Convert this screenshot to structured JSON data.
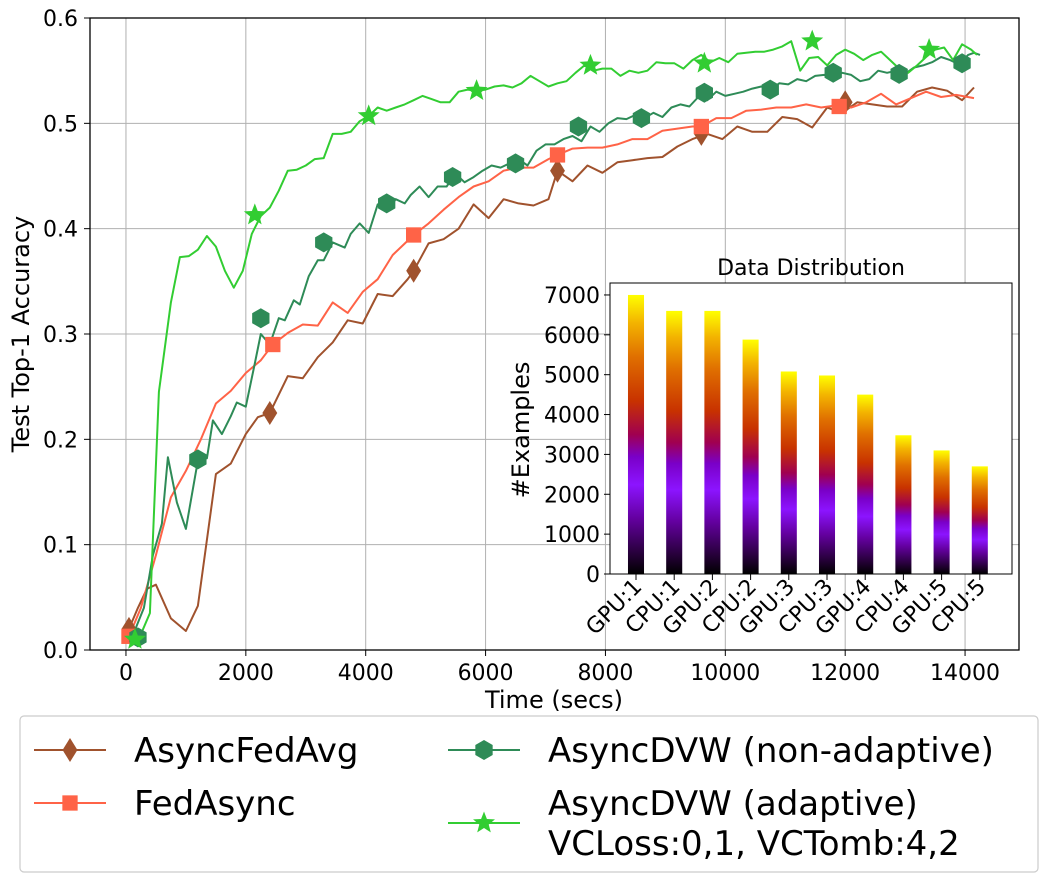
{
  "chart_data": [
    {
      "type": "line",
      "title": "",
      "xlabel": "Time (secs)",
      "ylabel": "Test Top-1 Accuracy",
      "xlim": [
        -600,
        14900
      ],
      "ylim": [
        0,
        0.6
      ],
      "xticks": [
        0,
        2000,
        4000,
        6000,
        8000,
        10000,
        12000,
        14000
      ],
      "xtick_labels": [
        "0",
        "2000",
        "4000",
        "6000",
        "8000",
        "10000",
        "12000",
        "14000"
      ],
      "yticks": [
        0,
        0.1,
        0.2,
        0.3,
        0.4,
        0.5,
        0.6
      ],
      "ytick_labels": [
        "0.0",
        "0.1",
        "0.2",
        "0.3",
        "0.4",
        "0.5",
        "0.6"
      ],
      "grid": true,
      "legend_position": "below",
      "series": [
        {
          "name": "AsyncFedAvg",
          "color": "#a0522d",
          "marker": "diamond",
          "x": [
            50,
            200,
            350,
            500,
            750,
            1000,
            1200,
            1500,
            1750,
            2000,
            2200,
            2400,
            2700,
            2950,
            3200,
            3450,
            3700,
            3950,
            4200,
            4450,
            4700,
            4800,
            5050,
            5300,
            5550,
            5800,
            6050,
            6300,
            6550,
            6800,
            7050,
            7200,
            7450,
            7700,
            7950,
            8200,
            8450,
            8700,
            8950,
            9200,
            9450,
            9700,
            9950,
            10200,
            10450,
            10700,
            10950,
            11200,
            11450,
            11700,
            11950,
            12200,
            12450,
            12700,
            12950,
            13200,
            13450,
            13700,
            13950,
            14150
          ],
          "y": [
            0.02,
            0.04,
            0.058,
            0.062,
            0.03,
            0.018,
            0.042,
            0.167,
            0.177,
            0.205,
            0.221,
            0.225,
            0.26,
            0.258,
            0.278,
            0.292,
            0.313,
            0.31,
            0.338,
            0.336,
            0.352,
            0.36,
            0.386,
            0.39,
            0.4,
            0.423,
            0.41,
            0.428,
            0.424,
            0.422,
            0.428,
            0.455,
            0.445,
            0.46,
            0.453,
            0.463,
            0.465,
            0.467,
            0.468,
            0.478,
            0.485,
            0.49,
            0.485,
            0.497,
            0.492,
            0.492,
            0.506,
            0.504,
            0.496,
            0.515,
            0.51,
            0.52,
            0.518,
            0.516,
            0.516,
            0.53,
            0.534,
            0.531,
            0.522,
            0.534
          ],
          "marker_x": [
            50,
            2400,
            4800,
            7200,
            9600,
            12000
          ],
          "marker_y": [
            0.02,
            0.225,
            0.36,
            0.455,
            0.49,
            0.52
          ]
        },
        {
          "name": "FedAsync",
          "color": "#ff6347",
          "marker": "square",
          "x": [
            50,
            250,
            500,
            750,
            1000,
            1250,
            1500,
            1750,
            2000,
            2250,
            2450,
            2700,
            2950,
            3200,
            3450,
            3700,
            3950,
            4200,
            4450,
            4800,
            5050,
            5300,
            5550,
            5800,
            6050,
            6300,
            6550,
            6800,
            7050,
            7200,
            7450,
            7700,
            7950,
            8200,
            8450,
            8700,
            8950,
            9200,
            9450,
            9600,
            9850,
            10100,
            10350,
            10600,
            10850,
            11100,
            11350,
            11600,
            11850,
            12100,
            12350,
            12600,
            12850,
            13100,
            13350,
            13600,
            13850,
            14150
          ],
          "y": [
            0.013,
            0.04,
            0.09,
            0.145,
            0.17,
            0.2,
            0.234,
            0.246,
            0.263,
            0.275,
            0.29,
            0.301,
            0.309,
            0.308,
            0.33,
            0.32,
            0.34,
            0.352,
            0.375,
            0.394,
            0.405,
            0.418,
            0.43,
            0.44,
            0.445,
            0.455,
            0.458,
            0.458,
            0.466,
            0.47,
            0.476,
            0.477,
            0.477,
            0.48,
            0.485,
            0.485,
            0.493,
            0.495,
            0.497,
            0.497,
            0.505,
            0.505,
            0.512,
            0.513,
            0.515,
            0.515,
            0.518,
            0.515,
            0.517,
            0.515,
            0.52,
            0.528,
            0.518,
            0.524,
            0.53,
            0.525,
            0.527,
            0.524
          ],
          "marker_x": [
            50,
            2450,
            4800,
            7200,
            9600,
            11900
          ],
          "marker_y": [
            0.013,
            0.29,
            0.394,
            0.47,
            0.497,
            0.516
          ]
        },
        {
          "name": "AsyncDVW (non-adaptive)",
          "color": "#2e8b57",
          "marker": "hexagon",
          "x": [
            100,
            300,
            450,
            600,
            700,
            850,
            1000,
            1200,
            1350,
            1450,
            1600,
            1750,
            1850,
            2000,
            2150,
            2250,
            2400,
            2550,
            2650,
            2800,
            2900,
            3050,
            3200,
            3300,
            3450,
            3650,
            3750,
            3900,
            4050,
            4200,
            4350,
            4500,
            4650,
            4750,
            4900,
            5050,
            5200,
            5350,
            5500,
            5650,
            5800,
            5950,
            6100,
            6250,
            6400,
            6550,
            6700,
            6850,
            7000,
            7150,
            7300,
            7450,
            7600,
            7750,
            7900,
            8050,
            8200,
            8350,
            8500,
            8650,
            8800,
            8950,
            9100,
            9250,
            9400,
            9550,
            9700,
            9850,
            10000,
            10150,
            10300,
            10450,
            10600,
            10750,
            10900,
            11050,
            11200,
            11350,
            11500,
            11650,
            11800,
            11950,
            12100,
            12250,
            12400,
            12550,
            12700,
            12850,
            13000,
            13150,
            13300,
            13450,
            13600,
            13750,
            13900,
            14050,
            14150,
            14250
          ],
          "y": [
            0.012,
            0.04,
            0.09,
            0.12,
            0.183,
            0.14,
            0.115,
            0.18,
            0.182,
            0.218,
            0.205,
            0.222,
            0.235,
            0.231,
            0.272,
            0.3,
            0.29,
            0.315,
            0.313,
            0.332,
            0.328,
            0.355,
            0.37,
            0.37,
            0.387,
            0.382,
            0.395,
            0.405,
            0.396,
            0.423,
            0.416,
            0.428,
            0.424,
            0.432,
            0.44,
            0.43,
            0.44,
            0.44,
            0.452,
            0.444,
            0.449,
            0.455,
            0.46,
            0.458,
            0.462,
            0.466,
            0.46,
            0.474,
            0.48,
            0.48,
            0.485,
            0.488,
            0.483,
            0.497,
            0.492,
            0.5,
            0.505,
            0.504,
            0.508,
            0.505,
            0.51,
            0.506,
            0.515,
            0.518,
            0.516,
            0.525,
            0.522,
            0.53,
            0.526,
            0.528,
            0.53,
            0.533,
            0.535,
            0.532,
            0.538,
            0.537,
            0.542,
            0.54,
            0.545,
            0.546,
            0.544,
            0.548,
            0.546,
            0.54,
            0.542,
            0.55,
            0.548,
            0.55,
            0.547,
            0.553,
            0.555,
            0.558,
            0.563,
            0.56,
            0.556,
            0.565,
            0.567,
            0.565
          ],
          "marker_x": [
            200,
            1200,
            2250,
            3300,
            4350,
            5450,
            6500,
            7550,
            8600,
            9650,
            10750,
            11800,
            12900,
            13950
          ],
          "marker_y": [
            0.012,
            0.181,
            0.315,
            0.387,
            0.424,
            0.449,
            0.462,
            0.497,
            0.505,
            0.529,
            0.532,
            0.548,
            0.547,
            0.557
          ]
        },
        {
          "name": "AsyncDVW (adaptive)\nVCLoss:0,1, VCTomb:4,2",
          "color": "#32cd32",
          "marker": "star",
          "x": [
            150,
            250,
            400,
            550,
            750,
            900,
            1050,
            1200,
            1350,
            1500,
            1650,
            1800,
            1950,
            2100,
            2250,
            2400,
            2550,
            2700,
            2850,
            3000,
            3150,
            3300,
            3450,
            3600,
            3750,
            3900,
            4050,
            4200,
            4350,
            4500,
            4650,
            4800,
            4950,
            5100,
            5250,
            5400,
            5550,
            5700,
            5850,
            6000,
            6150,
            6300,
            6450,
            6600,
            6750,
            6900,
            7050,
            7200,
            7350,
            7500,
            7650,
            7800,
            7950,
            8100,
            8250,
            8400,
            8550,
            8700,
            8850,
            9000,
            9150,
            9300,
            9450,
            9600,
            9750,
            9900,
            10050,
            10200,
            10350,
            10500,
            10650,
            10800,
            10950,
            11100,
            11250,
            11400,
            11550,
            11700,
            11850,
            12000,
            12150,
            12300,
            12450,
            12600,
            12750,
            12900,
            13050,
            13200,
            13350,
            13500,
            13650,
            13800,
            13950,
            14100,
            14200
          ],
          "y": [
            0.01,
            0.015,
            0.035,
            0.245,
            0.33,
            0.373,
            0.374,
            0.38,
            0.393,
            0.383,
            0.36,
            0.344,
            0.36,
            0.395,
            0.412,
            0.42,
            0.436,
            0.455,
            0.456,
            0.46,
            0.466,
            0.467,
            0.49,
            0.49,
            0.492,
            0.502,
            0.507,
            0.515,
            0.512,
            0.515,
            0.518,
            0.522,
            0.526,
            0.523,
            0.52,
            0.52,
            0.53,
            0.532,
            0.531,
            0.532,
            0.535,
            0.536,
            0.534,
            0.538,
            0.545,
            0.54,
            0.535,
            0.538,
            0.54,
            0.548,
            0.555,
            0.55,
            0.552,
            0.552,
            0.545,
            0.55,
            0.548,
            0.55,
            0.558,
            0.557,
            0.557,
            0.552,
            0.56,
            0.565,
            0.558,
            0.562,
            0.558,
            0.566,
            0.567,
            0.568,
            0.568,
            0.57,
            0.573,
            0.578,
            0.55,
            0.562,
            0.563,
            0.555,
            0.565,
            0.57,
            0.566,
            0.56,
            0.565,
            0.568,
            0.56,
            0.552,
            0.548,
            0.555,
            0.563,
            0.57,
            0.572,
            0.56,
            0.575,
            0.57,
            0.565
          ],
          "marker_x": [
            150,
            2150,
            4050,
            5850,
            7750,
            9650,
            11450,
            13400
          ],
          "marker_y": [
            0.01,
            0.413,
            0.507,
            0.531,
            0.555,
            0.557,
            0.578,
            0.57
          ]
        }
      ]
    },
    {
      "type": "bar",
      "title": "Data Distribution",
      "xlabel": "",
      "ylabel": "#Examples",
      "ylim": [
        0,
        7300
      ],
      "yticks": [
        0,
        1000,
        2000,
        3000,
        4000,
        5000,
        6000,
        7000
      ],
      "categories": [
        "GPU:1",
        "CPU:1",
        "GPU:2",
        "CPU:2",
        "GPU:3",
        "CPU:3",
        "GPU:4",
        "CPU:4",
        "GPU:5",
        "CPU:5"
      ],
      "values": [
        7000,
        6600,
        6600,
        5880,
        5080,
        4980,
        4500,
        3480,
        3100,
        2700
      ],
      "colormap": "gnuplot"
    }
  ]
}
